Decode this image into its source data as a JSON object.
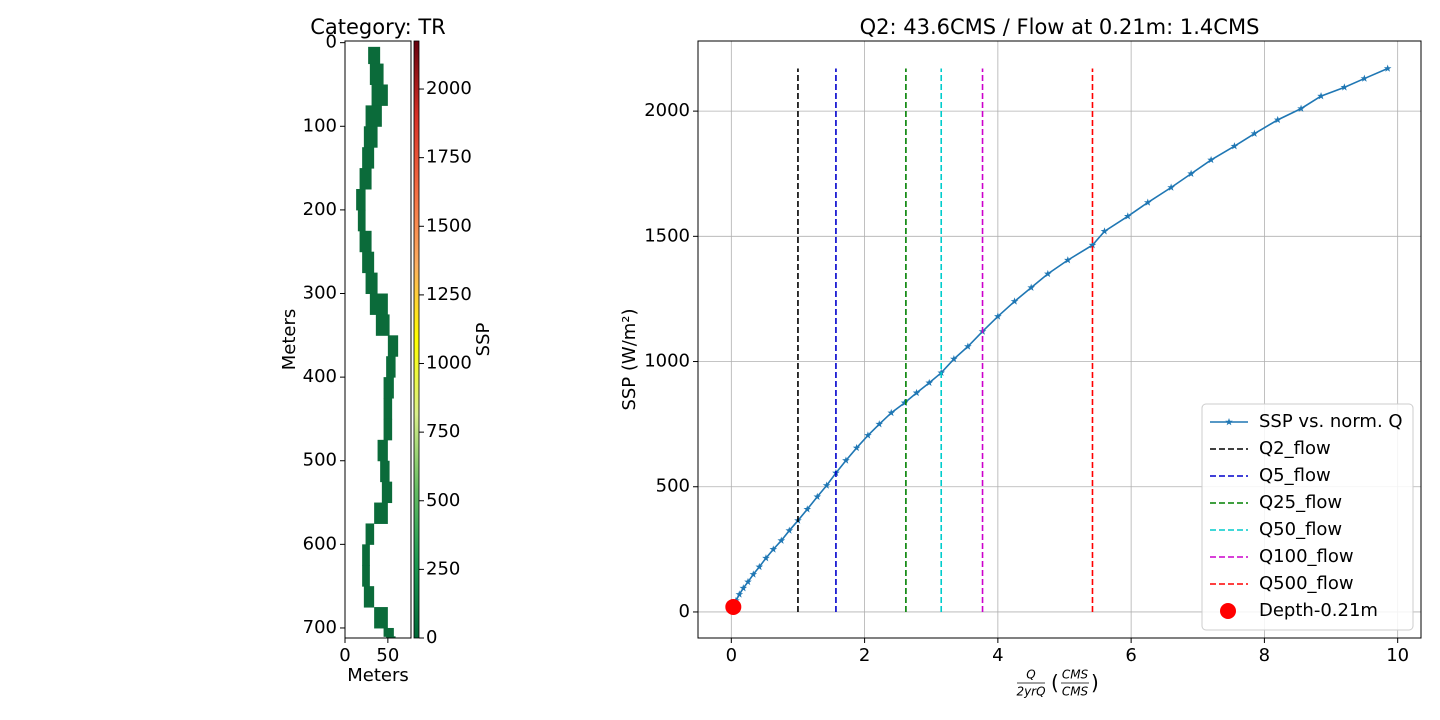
{
  "chart_data": [
    {
      "type": "raster",
      "title": "Category: TR",
      "xlabel": "Meters",
      "ylabel": "Meters",
      "xlim": [
        0,
        77
      ],
      "ylim": [
        712,
        -2
      ],
      "xticks": [
        0,
        50
      ],
      "yticks": [
        0,
        100,
        200,
        300,
        400,
        500,
        600,
        700
      ],
      "color": "#0b6b3a",
      "y": [
        5,
        25,
        50,
        75,
        100,
        125,
        150,
        175,
        200,
        225,
        250,
        275,
        300,
        325,
        350,
        375,
        400,
        425,
        450,
        475,
        500,
        525,
        550,
        575,
        600,
        625,
        650,
        675,
        700,
        710
      ],
      "x_left": [
        27,
        29,
        31,
        24,
        22,
        20,
        17,
        13,
        15,
        17,
        20,
        24,
        29,
        36,
        50,
        48,
        45,
        45,
        45,
        38,
        41,
        43,
        34,
        24,
        20,
        20,
        22,
        34,
        45,
        48
      ],
      "x_right": [
        41,
        45,
        50,
        43,
        38,
        34,
        31,
        24,
        24,
        31,
        34,
        38,
        50,
        52,
        62,
        59,
        57,
        55,
        55,
        50,
        52,
        55,
        50,
        34,
        29,
        29,
        34,
        50,
        57,
        59
      ],
      "colorbar": {
        "label": "SSP",
        "lim": [
          0,
          2175
        ],
        "ticks": [
          0,
          250,
          500,
          750,
          1000,
          1250,
          1500,
          1750,
          2000
        ],
        "colors": [
          "#006837",
          "#1a9850",
          "#66bd63",
          "#d9ef8b",
          "#ffff00",
          "#fdae61",
          "#f46d43",
          "#d73027",
          "#67000d"
        ]
      }
    },
    {
      "type": "line",
      "title": "Q2: 43.6CMS / Flow at 0.21m: 1.4CMS",
      "xlabel": {
        "numerator": "Q",
        "denominator": "2yrQ",
        "unit_numerator": "CMS",
        "unit_denominator": "CMS"
      },
      "ylabel": "SSP (W/m²)",
      "xlim": [
        -0.5,
        10.35
      ],
      "ylim": [
        -104,
        2280
      ],
      "xticks": [
        0,
        2,
        4,
        6,
        8,
        10
      ],
      "yticks": [
        0,
        500,
        1000,
        1500,
        2000
      ],
      "grid": true,
      "legend": "lower right",
      "series": [
        {
          "name": "SSP vs. norm. Q",
          "color": "#1f77b4",
          "style": "solid",
          "marker": "star",
          "x": [
            0.03,
            0.07,
            0.12,
            0.18,
            0.25,
            0.33,
            0.42,
            0.52,
            0.63,
            0.75,
            0.87,
            1.0,
            1.14,
            1.29,
            1.43,
            1.57,
            1.72,
            1.88,
            2.05,
            2.22,
            2.4,
            2.6,
            2.78,
            2.97,
            3.15,
            3.34,
            3.55,
            3.77,
            4.0,
            4.25,
            4.5,
            4.75,
            5.05,
            5.42,
            5.6,
            5.95,
            6.25,
            6.6,
            6.9,
            7.2,
            7.55,
            7.85,
            8.2,
            8.55,
            8.85,
            9.2,
            9.5,
            9.85
          ],
          "values": [
            20,
            45,
            70,
            95,
            120,
            150,
            180,
            215,
            250,
            285,
            325,
            365,
            410,
            460,
            505,
            555,
            605,
            655,
            705,
            750,
            795,
            835,
            875,
            915,
            955,
            1010,
            1060,
            1120,
            1180,
            1240,
            1295,
            1350,
            1405,
            1465,
            1520,
            1580,
            1635,
            1695,
            1750,
            1805,
            1860,
            1910,
            1965,
            2010,
            2060,
            2095,
            2130,
            2170
          ]
        },
        {
          "name": "Q2_flow",
          "color": "#000000",
          "style": "dashed",
          "x": [
            1.0,
            1.0
          ],
          "values": [
            0,
            2170
          ]
        },
        {
          "name": "Q5_flow",
          "color": "#0000cc",
          "style": "dashed",
          "x": [
            1.57,
            1.57
          ],
          "values": [
            0,
            2170
          ]
        },
        {
          "name": "Q25_flow",
          "color": "#008000",
          "style": "dashed",
          "x": [
            2.62,
            2.62
          ],
          "values": [
            0,
            2170
          ]
        },
        {
          "name": "Q50_flow",
          "color": "#00cccc",
          "style": "dashed",
          "x": [
            3.15,
            3.15
          ],
          "values": [
            0,
            2170
          ]
        },
        {
          "name": "Q100_flow",
          "color": "#cc00cc",
          "style": "dashed",
          "x": [
            3.77,
            3.77
          ],
          "values": [
            0,
            2170
          ]
        },
        {
          "name": "Q500_flow",
          "color": "#ff0000",
          "style": "dashed",
          "x": [
            5.42,
            5.42
          ],
          "values": [
            0,
            2170
          ]
        },
        {
          "name": "Depth-0.21m",
          "color": "#ff0000",
          "style": "scatter",
          "x": [
            0.03
          ],
          "values": [
            20
          ]
        }
      ]
    }
  ]
}
